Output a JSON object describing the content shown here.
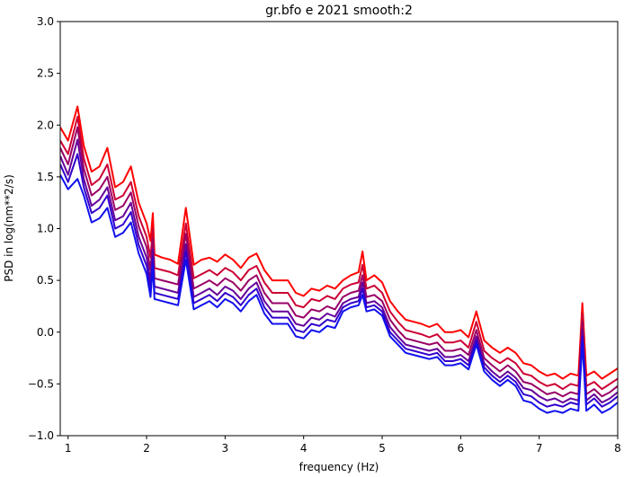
{
  "chart_data": {
    "type": "line",
    "title": "gr.bfo e 2021 smooth:2",
    "xlabel": "frequency (Hz)",
    "ylabel": "PSD in log(nm**2/s)",
    "xlim": [
      0.9,
      8.0
    ],
    "ylim": [
      -1.0,
      3.0
    ],
    "xticks": [
      "1",
      "2",
      "3",
      "4",
      "5",
      "6",
      "7",
      "8"
    ],
    "yticks": [
      "−1.0",
      "−0.5",
      "0.0",
      "0.5",
      "1.0",
      "1.5",
      "2.0",
      "2.5",
      "3.0"
    ],
    "grid": false,
    "legend": "none",
    "series": [
      {
        "color": "#ff0000",
        "x": [
          0.9,
          1.0,
          1.12,
          1.2,
          1.3,
          1.4,
          1.5,
          1.6,
          1.7,
          1.8,
          1.9,
          2.0,
          2.05,
          2.08,
          2.1,
          2.2,
          2.3,
          2.4,
          2.5,
          2.6,
          2.7,
          2.8,
          2.9,
          3.0,
          3.1,
          3.2,
          3.3,
          3.4,
          3.5,
          3.6,
          3.7,
          3.8,
          3.9,
          4.0,
          4.1,
          4.2,
          4.3,
          4.4,
          4.5,
          4.6,
          4.7,
          4.75,
          4.8,
          4.9,
          5.0,
          5.1,
          5.2,
          5.3,
          5.4,
          5.5,
          5.6,
          5.7,
          5.8,
          5.9,
          6.0,
          6.1,
          6.2,
          6.3,
          6.4,
          6.5,
          6.6,
          6.7,
          6.8,
          6.9,
          7.0,
          7.1,
          7.2,
          7.3,
          7.4,
          7.5,
          7.55,
          7.6,
          7.7,
          7.8,
          7.9,
          8.0
        ],
        "y": [
          1.98,
          1.85,
          2.18,
          1.8,
          1.55,
          1.6,
          1.78,
          1.4,
          1.45,
          1.6,
          1.25,
          1.05,
          0.88,
          1.15,
          0.75,
          0.72,
          0.7,
          0.66,
          1.2,
          0.65,
          0.7,
          0.72,
          0.68,
          0.75,
          0.7,
          0.62,
          0.72,
          0.76,
          0.6,
          0.5,
          0.5,
          0.5,
          0.38,
          0.35,
          0.42,
          0.4,
          0.45,
          0.42,
          0.5,
          0.55,
          0.58,
          0.78,
          0.5,
          0.55,
          0.48,
          0.3,
          0.2,
          0.12,
          0.1,
          0.08,
          0.05,
          0.08,
          0.0,
          0.0,
          0.02,
          -0.05,
          0.2,
          -0.08,
          -0.15,
          -0.2,
          -0.15,
          -0.2,
          -0.3,
          -0.32,
          -0.38,
          -0.42,
          -0.4,
          -0.45,
          -0.4,
          -0.42,
          0.28,
          -0.42,
          -0.38,
          -0.45,
          -0.4,
          -0.35
        ]
      },
      {
        "color": "#cc0033",
        "x": [
          0.9,
          1.0,
          1.12,
          1.2,
          1.3,
          1.4,
          1.5,
          1.6,
          1.7,
          1.8,
          1.9,
          2.0,
          2.05,
          2.08,
          2.1,
          2.2,
          2.3,
          2.4,
          2.5,
          2.6,
          2.7,
          2.8,
          2.9,
          3.0,
          3.1,
          3.2,
          3.3,
          3.4,
          3.5,
          3.6,
          3.7,
          3.8,
          3.9,
          4.0,
          4.1,
          4.2,
          4.3,
          4.4,
          4.5,
          4.6,
          4.7,
          4.75,
          4.8,
          4.9,
          5.0,
          5.1,
          5.2,
          5.3,
          5.4,
          5.5,
          5.6,
          5.7,
          5.8,
          5.9,
          6.0,
          6.1,
          6.2,
          6.3,
          6.4,
          6.5,
          6.6,
          6.7,
          6.8,
          6.9,
          7.0,
          7.1,
          7.2,
          7.3,
          7.4,
          7.5,
          7.55,
          7.6,
          7.7,
          7.8,
          7.9,
          8.0
        ],
        "y": [
          1.85,
          1.72,
          2.08,
          1.68,
          1.42,
          1.48,
          1.62,
          1.28,
          1.32,
          1.45,
          1.12,
          0.92,
          0.72,
          1.0,
          0.62,
          0.6,
          0.58,
          0.55,
          1.05,
          0.52,
          0.56,
          0.6,
          0.55,
          0.62,
          0.58,
          0.5,
          0.6,
          0.64,
          0.48,
          0.38,
          0.38,
          0.38,
          0.26,
          0.24,
          0.32,
          0.3,
          0.35,
          0.32,
          0.42,
          0.46,
          0.48,
          0.65,
          0.42,
          0.45,
          0.38,
          0.2,
          0.1,
          0.02,
          0.0,
          -0.02,
          -0.05,
          -0.02,
          -0.1,
          -0.1,
          -0.08,
          -0.15,
          0.1,
          -0.18,
          -0.25,
          -0.3,
          -0.25,
          -0.3,
          -0.4,
          -0.42,
          -0.48,
          -0.52,
          -0.5,
          -0.55,
          -0.5,
          -0.52,
          0.18,
          -0.52,
          -0.48,
          -0.55,
          -0.5,
          -0.45
        ]
      },
      {
        "color": "#990066",
        "x": [
          0.9,
          1.0,
          1.12,
          1.2,
          1.3,
          1.4,
          1.5,
          1.6,
          1.7,
          1.8,
          1.9,
          2.0,
          2.05,
          2.08,
          2.1,
          2.2,
          2.3,
          2.4,
          2.5,
          2.6,
          2.7,
          2.8,
          2.9,
          3.0,
          3.1,
          3.2,
          3.3,
          3.4,
          3.5,
          3.6,
          3.7,
          3.8,
          3.9,
          4.0,
          4.1,
          4.2,
          4.3,
          4.4,
          4.5,
          4.6,
          4.7,
          4.75,
          4.8,
          4.9,
          5.0,
          5.1,
          5.2,
          5.3,
          5.4,
          5.5,
          5.6,
          5.7,
          5.8,
          5.9,
          6.0,
          6.1,
          6.2,
          6.3,
          6.4,
          6.5,
          6.6,
          6.7,
          6.8,
          6.9,
          7.0,
          7.1,
          7.2,
          7.3,
          7.4,
          7.5,
          7.55,
          7.6,
          7.7,
          7.8,
          7.9,
          8.0
        ],
        "y": [
          1.78,
          1.62,
          1.98,
          1.58,
          1.32,
          1.38,
          1.5,
          1.18,
          1.22,
          1.35,
          1.02,
          0.82,
          0.6,
          0.9,
          0.52,
          0.5,
          0.48,
          0.46,
          0.95,
          0.42,
          0.46,
          0.5,
          0.45,
          0.52,
          0.48,
          0.4,
          0.5,
          0.55,
          0.38,
          0.28,
          0.28,
          0.28,
          0.16,
          0.14,
          0.22,
          0.2,
          0.25,
          0.22,
          0.34,
          0.38,
          0.4,
          0.55,
          0.34,
          0.36,
          0.3,
          0.12,
          0.02,
          -0.06,
          -0.08,
          -0.1,
          -0.12,
          -0.1,
          -0.18,
          -0.18,
          -0.16,
          -0.22,
          0.02,
          -0.25,
          -0.32,
          -0.38,
          -0.32,
          -0.38,
          -0.48,
          -0.5,
          -0.55,
          -0.6,
          -0.58,
          -0.62,
          -0.58,
          -0.6,
          0.1,
          -0.6,
          -0.55,
          -0.62,
          -0.58,
          -0.52
        ]
      },
      {
        "color": "#660099",
        "x": [
          0.9,
          1.0,
          1.12,
          1.2,
          1.3,
          1.4,
          1.5,
          1.6,
          1.7,
          1.8,
          1.9,
          2.0,
          2.05,
          2.08,
          2.1,
          2.2,
          2.3,
          2.4,
          2.5,
          2.6,
          2.7,
          2.8,
          2.9,
          3.0,
          3.1,
          3.2,
          3.3,
          3.4,
          3.5,
          3.6,
          3.7,
          3.8,
          3.9,
          4.0,
          4.1,
          4.2,
          4.3,
          4.4,
          4.5,
          4.6,
          4.7,
          4.75,
          4.8,
          4.9,
          5.0,
          5.1,
          5.2,
          5.3,
          5.4,
          5.5,
          5.6,
          5.7,
          5.8,
          5.9,
          6.0,
          6.1,
          6.2,
          6.3,
          6.4,
          6.5,
          6.6,
          6.7,
          6.8,
          6.9,
          7.0,
          7.1,
          7.2,
          7.3,
          7.4,
          7.5,
          7.55,
          7.6,
          7.7,
          7.8,
          7.9,
          8.0
        ],
        "y": [
          1.7,
          1.52,
          1.86,
          1.48,
          1.22,
          1.28,
          1.4,
          1.08,
          1.12,
          1.25,
          0.92,
          0.72,
          0.5,
          0.8,
          0.44,
          0.42,
          0.4,
          0.38,
          0.85,
          0.34,
          0.38,
          0.42,
          0.36,
          0.44,
          0.4,
          0.32,
          0.42,
          0.48,
          0.3,
          0.2,
          0.2,
          0.2,
          0.08,
          0.06,
          0.14,
          0.12,
          0.18,
          0.15,
          0.28,
          0.32,
          0.34,
          0.48,
          0.28,
          0.3,
          0.24,
          0.05,
          -0.04,
          -0.12,
          -0.14,
          -0.16,
          -0.18,
          -0.16,
          -0.24,
          -0.24,
          -0.22,
          -0.28,
          -0.04,
          -0.3,
          -0.38,
          -0.44,
          -0.38,
          -0.44,
          -0.54,
          -0.56,
          -0.62,
          -0.66,
          -0.64,
          -0.68,
          -0.64,
          -0.66,
          0.02,
          -0.66,
          -0.6,
          -0.68,
          -0.64,
          -0.58
        ]
      },
      {
        "color": "#3300cc",
        "x": [
          0.9,
          1.0,
          1.12,
          1.2,
          1.3,
          1.4,
          1.5,
          1.6,
          1.7,
          1.8,
          1.9,
          2.0,
          2.05,
          2.08,
          2.1,
          2.2,
          2.3,
          2.4,
          2.5,
          2.6,
          2.7,
          2.8,
          2.9,
          3.0,
          3.1,
          3.2,
          3.3,
          3.4,
          3.5,
          3.6,
          3.7,
          3.8,
          3.9,
          4.0,
          4.1,
          4.2,
          4.3,
          4.4,
          4.5,
          4.6,
          4.7,
          4.75,
          4.8,
          4.9,
          5.0,
          5.1,
          5.2,
          5.3,
          5.4,
          5.5,
          5.6,
          5.7,
          5.8,
          5.9,
          6.0,
          6.1,
          6.2,
          6.3,
          6.4,
          6.5,
          6.6,
          6.7,
          6.8,
          6.9,
          7.0,
          7.1,
          7.2,
          7.3,
          7.4,
          7.5,
          7.55,
          7.6,
          7.7,
          7.8,
          7.9,
          8.0
        ],
        "y": [
          1.62,
          1.45,
          1.72,
          1.4,
          1.15,
          1.2,
          1.32,
          1.0,
          1.04,
          1.16,
          0.84,
          0.64,
          0.42,
          0.72,
          0.38,
          0.36,
          0.34,
          0.32,
          0.78,
          0.28,
          0.32,
          0.36,
          0.3,
          0.38,
          0.34,
          0.26,
          0.36,
          0.42,
          0.24,
          0.14,
          0.14,
          0.14,
          0.02,
          0.0,
          0.08,
          0.06,
          0.12,
          0.1,
          0.24,
          0.28,
          0.3,
          0.42,
          0.24,
          0.26,
          0.2,
          0.0,
          -0.08,
          -0.16,
          -0.18,
          -0.2,
          -0.22,
          -0.2,
          -0.28,
          -0.28,
          -0.26,
          -0.32,
          -0.08,
          -0.34,
          -0.42,
          -0.48,
          -0.42,
          -0.48,
          -0.6,
          -0.62,
          -0.68,
          -0.72,
          -0.7,
          -0.72,
          -0.68,
          -0.7,
          -0.04,
          -0.7,
          -0.64,
          -0.72,
          -0.68,
          -0.62
        ]
      },
      {
        "color": "#1010ee",
        "x": [
          0.9,
          1.0,
          1.12,
          1.2,
          1.3,
          1.4,
          1.5,
          1.6,
          1.7,
          1.8,
          1.9,
          2.0,
          2.05,
          2.08,
          2.1,
          2.2,
          2.3,
          2.4,
          2.5,
          2.6,
          2.7,
          2.8,
          2.9,
          3.0,
          3.1,
          3.2,
          3.3,
          3.4,
          3.5,
          3.6,
          3.7,
          3.8,
          3.9,
          4.0,
          4.1,
          4.2,
          4.3,
          4.4,
          4.5,
          4.6,
          4.7,
          4.75,
          4.8,
          4.9,
          5.0,
          5.1,
          5.2,
          5.3,
          5.4,
          5.5,
          5.6,
          5.7,
          5.8,
          5.9,
          6.0,
          6.1,
          6.2,
          6.3,
          6.4,
          6.5,
          6.6,
          6.7,
          6.8,
          6.9,
          7.0,
          7.1,
          7.2,
          7.3,
          7.4,
          7.5,
          7.55,
          7.6,
          7.7,
          7.8,
          7.9,
          8.0
        ],
        "y": [
          1.52,
          1.38,
          1.48,
          1.32,
          1.06,
          1.1,
          1.2,
          0.92,
          0.96,
          1.06,
          0.76,
          0.56,
          0.34,
          0.64,
          0.32,
          0.3,
          0.28,
          0.26,
          0.7,
          0.22,
          0.26,
          0.3,
          0.24,
          0.32,
          0.28,
          0.2,
          0.3,
          0.36,
          0.18,
          0.08,
          0.08,
          0.08,
          -0.04,
          -0.06,
          0.02,
          0.0,
          0.06,
          0.04,
          0.2,
          0.24,
          0.26,
          0.36,
          0.2,
          0.22,
          0.16,
          -0.04,
          -0.12,
          -0.2,
          -0.22,
          -0.24,
          -0.26,
          -0.24,
          -0.32,
          -0.32,
          -0.3,
          -0.36,
          -0.12,
          -0.38,
          -0.46,
          -0.52,
          -0.46,
          -0.52,
          -0.66,
          -0.68,
          -0.74,
          -0.78,
          -0.76,
          -0.78,
          -0.74,
          -0.76,
          -0.1,
          -0.76,
          -0.7,
          -0.78,
          -0.74,
          -0.68
        ]
      }
    ]
  }
}
